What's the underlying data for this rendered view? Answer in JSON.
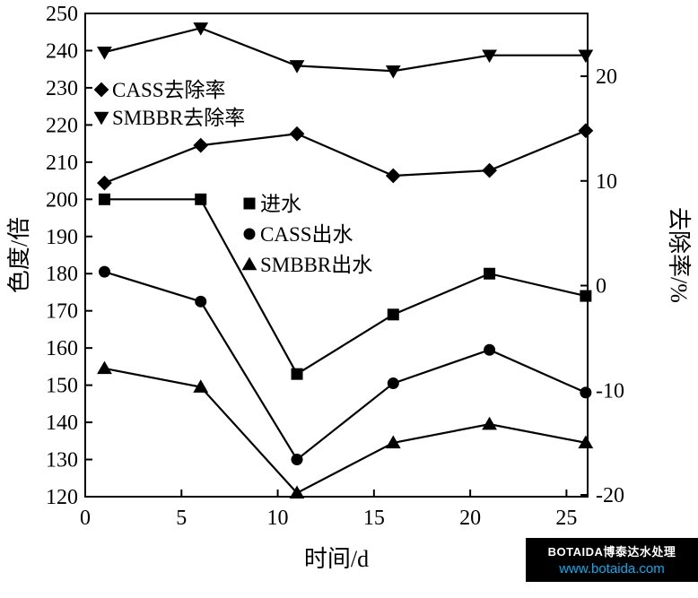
{
  "watermark": {
    "line1": "BOTAIDA博泰达水处理",
    "line2": "www.botaida.com"
  },
  "chart_data": {
    "type": "line",
    "x": [
      1,
      6,
      11,
      16,
      21,
      26
    ],
    "xlabel": "时间/d",
    "ylabel_left": "色度/倍",
    "ylabel_right": "去除率/%",
    "x_ticks": [
      0,
      5,
      10,
      15,
      20,
      25
    ],
    "y_left_ticks": [
      120,
      130,
      140,
      150,
      160,
      170,
      180,
      190,
      200,
      210,
      220,
      230,
      240,
      250
    ],
    "y_right_ticks": [
      -20,
      -10,
      0,
      10,
      20
    ],
    "x_range": [
      0,
      26.1
    ],
    "y_left_range": [
      120,
      250
    ],
    "y_right_range": [
      -20.17,
      26.0
    ],
    "grid": false,
    "color": "#000000",
    "series": [
      {
        "name": "进水",
        "axis": "left",
        "marker": "square",
        "values": [
          200,
          200,
          153,
          169,
          180,
          174
        ]
      },
      {
        "name": "CASS出水",
        "axis": "left",
        "marker": "circle",
        "values": [
          180.5,
          172.5,
          130,
          150.5,
          159.5,
          148
        ]
      },
      {
        "name": "SMBBR出水",
        "axis": "left",
        "marker": "triangle-up",
        "values": [
          154.5,
          149.5,
          121,
          134.5,
          139.5,
          134.5
        ]
      },
      {
        "name": "CASS去除率",
        "axis": "right",
        "marker": "diamond",
        "values": [
          9.8,
          13.4,
          14.5,
          10.5,
          11.0,
          14.8
        ]
      },
      {
        "name": "SMBBR去除率",
        "axis": "right",
        "marker": "triangle-down",
        "values": [
          22.3,
          24.6,
          21.0,
          20.5,
          22.0,
          22.0
        ]
      }
    ],
    "legend_top": [
      "CASS去除率",
      "SMBBR去除率"
    ],
    "legend_middle": [
      "进水",
      "CASS出水",
      "SMBBR出水"
    ],
    "legend_position": "inside"
  }
}
